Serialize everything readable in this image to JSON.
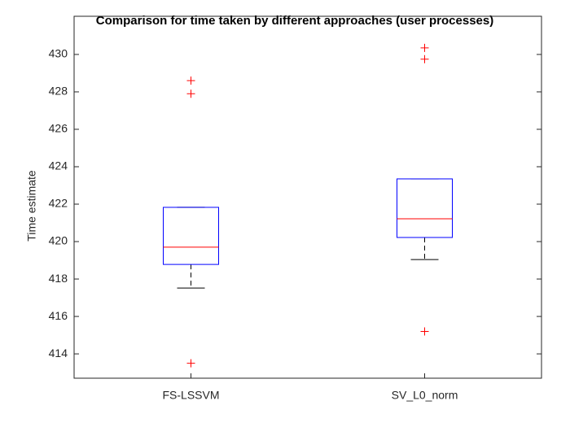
{
  "chart_data": {
    "type": "box",
    "title": "Comparison for time taken by different approaches (user processes)",
    "y_label": "Time estimate",
    "categories": [
      "FS-LSSVM",
      "SV_L0_norm"
    ],
    "boxes": [
      {
        "whisker_low": 417.52,
        "q1": 418.78,
        "median": 419.7,
        "q3": 421.83,
        "whisker_high": 421.83,
        "outliers": [
          428.6,
          427.9,
          413.5
        ]
      },
      {
        "whisker_low": 419.04,
        "q1": 420.22,
        "median": 421.22,
        "q3": 423.35,
        "whisker_high": 423.35,
        "outliers": [
          430.35,
          429.75,
          415.2
        ]
      }
    ],
    "box_color": "#0000ff",
    "median_color": "#ff0000",
    "whisker_color": "#000000",
    "outlier_color": "#ff0000",
    "ylim": [
      412.7,
      432.04
    ],
    "yticks": [
      414,
      416,
      418,
      420,
      422,
      424,
      426,
      428,
      430
    ]
  }
}
